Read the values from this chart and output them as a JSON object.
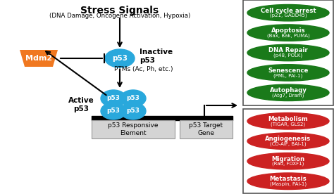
{
  "title": "Stress Signals",
  "subtitle": "(DNA Damage, Oncogene Activation, Hypoxia)",
  "mdm2_color": "#F07820",
  "mdm2_text": "Mdm2",
  "p53_color": "#29A8DC",
  "p53_text": "p53",
  "inactive_label": "Inactive\np53",
  "active_label": "Active\np53",
  "ptms_label": "PTMs (Ac, Ph, etc.)",
  "responsive_element": "p53 Responsive\nElement",
  "target_gene": "p53 Target\nGene",
  "green_box_items": [
    [
      "Cell cycle arrest",
      "(p21, GADD45)"
    ],
    [
      "Apoptosis",
      "(Bax, Bak, PUMA)"
    ],
    [
      "DNA Repair",
      "(p48, POLK)"
    ],
    [
      "Senescence",
      "(PML, PAI-1)"
    ],
    [
      "Autophagy",
      "(Atg7, Dram)"
    ]
  ],
  "red_box_items": [
    [
      "Metabolism",
      "(TIGAR, GLS2)"
    ],
    [
      "Angiogenesis",
      "(CD-AIF, BAI-1)"
    ],
    [
      "Migration",
      "(Rad, FOXF1)"
    ],
    [
      "Metastasis",
      "(Maspin, PAI-1)"
    ]
  ],
  "green_ellipse_color": "#1A7A1A",
  "red_ellipse_color": "#CC2222",
  "box_border_color": "#555555",
  "bg_color": "#FFFFFF"
}
